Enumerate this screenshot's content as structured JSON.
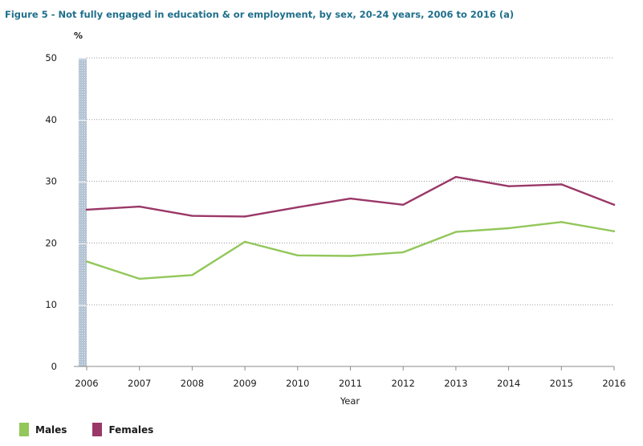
{
  "figure": {
    "title": "Figure 5 - Not fully engaged in education & or employment, by sex, 20-24 years, 2006 to 2016 (a)"
  },
  "chart_data": {
    "type": "line",
    "title": "Figure 5 - Not fully engaged in education & or employment, by sex, 20-24 years, 2006 to 2016 (a)",
    "xlabel": "Year",
    "ylabel": "%",
    "x": [
      "2006",
      "2007",
      "2008",
      "2009",
      "2010",
      "2011",
      "2012",
      "2013",
      "2014",
      "2015",
      "2016"
    ],
    "ylim": [
      0,
      50
    ],
    "yticks": [
      "0",
      "10",
      "20",
      "30",
      "40",
      "50"
    ],
    "grid": "horizontal dotted",
    "legend_position": "bottom-left",
    "series": [
      {
        "name": "Males",
        "color": "#92c75a",
        "values": [
          17.0,
          14.2,
          14.8,
          20.2,
          18.0,
          17.9,
          18.5,
          21.8,
          22.4,
          23.4,
          21.9
        ]
      },
      {
        "name": "Females",
        "color": "#9a3868",
        "values": [
          25.4,
          25.9,
          24.4,
          24.3,
          25.8,
          27.2,
          26.2,
          30.7,
          29.2,
          29.5,
          26.2
        ]
      }
    ]
  }
}
